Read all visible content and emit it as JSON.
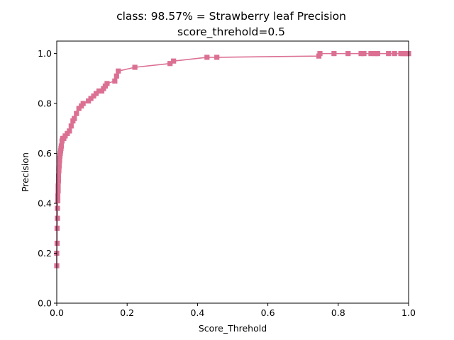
{
  "chart_data": {
    "type": "line",
    "title_line1": "class: 98.57% = Strawberry leaf Precision",
    "title_line2": "score_threhold=0.5",
    "xlabel": "Score_Threhold",
    "ylabel": "Precision",
    "xlim": [
      0,
      1
    ],
    "ylim": [
      0,
      1.05
    ],
    "x_ticks": [
      "0.0",
      "0.2",
      "0.4",
      "0.6",
      "0.8",
      "1.0"
    ],
    "y_ticks": [
      "0.0",
      "0.2",
      "0.4",
      "0.6",
      "0.8",
      "1.0"
    ],
    "grid": false,
    "legend": "none",
    "marker": "square",
    "color": "#db7093",
    "series": [
      {
        "x": [
          0.0,
          0.0,
          0.001,
          0.001,
          0.002,
          0.002,
          0.003,
          0.003,
          0.004,
          0.004,
          0.005,
          0.005,
          0.006,
          0.006,
          0.007,
          0.008,
          0.008,
          0.009,
          0.01,
          0.011,
          0.012,
          0.013,
          0.015,
          0.017,
          0.02,
          0.024,
          0.03,
          0.036,
          0.041,
          0.046,
          0.05,
          0.056,
          0.063,
          0.07,
          0.075,
          0.09,
          0.097,
          0.105,
          0.112,
          0.12,
          0.128,
          0.133,
          0.138,
          0.143,
          0.165,
          0.17,
          0.175,
          0.222,
          0.322,
          0.332,
          0.427,
          0.455,
          0.745,
          0.748,
          0.788,
          0.828,
          0.865,
          0.873,
          0.893,
          0.905,
          0.912,
          0.943,
          0.96,
          0.978,
          0.984,
          0.99,
          0.996,
          1.0
        ],
        "y": [
          0.15,
          0.2,
          0.24,
          0.3,
          0.34,
          0.38,
          0.41,
          0.43,
          0.45,
          0.47,
          0.49,
          0.51,
          0.53,
          0.54,
          0.55,
          0.57,
          0.58,
          0.59,
          0.6,
          0.61,
          0.62,
          0.63,
          0.65,
          0.66,
          0.66,
          0.67,
          0.68,
          0.69,
          0.71,
          0.73,
          0.74,
          0.76,
          0.78,
          0.79,
          0.8,
          0.81,
          0.82,
          0.83,
          0.84,
          0.85,
          0.85,
          0.86,
          0.87,
          0.88,
          0.89,
          0.91,
          0.93,
          0.945,
          0.96,
          0.97,
          0.985,
          0.985,
          0.99,
          1.0,
          1.0,
          1.0,
          1.0,
          1.0,
          1.0,
          1.0,
          1.0,
          1.0,
          1.0,
          1.0,
          1.0,
          1.0,
          1.0,
          1.0
        ]
      }
    ]
  }
}
